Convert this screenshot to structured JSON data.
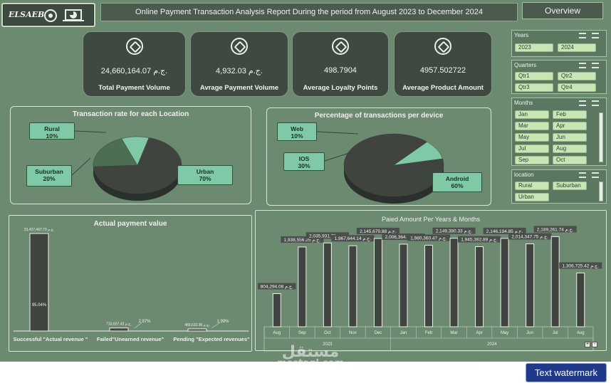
{
  "header": {
    "logo_text": "ELSAEB",
    "report_title": "Online Payment Transaction Analysis Report  During the period from August 2023 to December 2024",
    "overview_label": "Overview"
  },
  "kpis": [
    {
      "value": "24,660,164.07 ج.م.",
      "label": "Total Payment Volume"
    },
    {
      "value": "4,932.03 ج.م.",
      "label": "Avrage Payment Volume"
    },
    {
      "value": "498.7904",
      "label": "Average Loyalty Points"
    },
    {
      "value": "4957.502722",
      "label": "Average Product Amount"
    }
  ],
  "slicers": {
    "years": {
      "title": "Years",
      "items": [
        "2023",
        "2024"
      ]
    },
    "quarters": {
      "title": "Quarters",
      "items": [
        "Qtr1",
        "Qtr2",
        "Qtr3",
        "Qtr4"
      ]
    },
    "months": {
      "title": "Months",
      "items": [
        "Jan",
        "Feb",
        "Mar",
        "Apr",
        "May",
        "Jun",
        "Jul",
        "Aug",
        "Sep",
        "Oct"
      ]
    },
    "location": {
      "title": "location",
      "items": [
        "Rural",
        "Suburban",
        "Urban"
      ]
    }
  },
  "chart_data": [
    {
      "type": "pie",
      "title": "Transaction rate for each Location",
      "slices": [
        {
          "label": "Urban",
          "value": 70,
          "text": "70%"
        },
        {
          "label": "Suburban",
          "value": 20,
          "text": "20%"
        },
        {
          "label": "Rural",
          "value": 10,
          "text": "10%"
        }
      ]
    },
    {
      "type": "pie",
      "title": "Percentage of transactions per device",
      "slices": [
        {
          "label": "Android",
          "value": 60,
          "text": "60%"
        },
        {
          "label": "IOS",
          "value": 30,
          "text": "30%"
        },
        {
          "label": "Web",
          "value": 10,
          "text": "10%"
        }
      ]
    },
    {
      "type": "bar",
      "title": "Actual payment value",
      "categories": [
        "Successful \"Actual revenue \"",
        "Failed\"Unearned revenue\"",
        "Pending \"Expected revenues\""
      ],
      "values": [
        23437467.79,
        733657.43,
        489610.06
      ],
      "value_labels": [
        "23,437,467.79 ج.م.",
        "733,657.43 ج.م.",
        "489,610.06 ج.م."
      ],
      "percent_labels": [
        "95.04%",
        "2.97%",
        "1.99%"
      ]
    },
    {
      "type": "bar",
      "title": "Paied Amount Per Years & Months",
      "categories": [
        "Aug",
        "Sep",
        "Oct",
        "Nov",
        "Dec",
        "Jan",
        "Feb",
        "Mar",
        "Apr",
        "May",
        "Jun",
        "Jul",
        "Aug"
      ],
      "groups": [
        {
          "label": "2023",
          "span": 5
        },
        {
          "label": "2024",
          "span": 8
        }
      ],
      "values": [
        804294.08,
        1938556.25,
        2035931.71,
        1967644.14,
        2145679.88,
        2006364.76,
        1980360.47,
        2149380.33,
        1945392.89,
        2146194.85,
        2014347.75,
        2189261.74,
        1306725.42
      ],
      "value_labels": [
        "804,294.08 ج.م.",
        "1,938,556.25 ج.م.",
        "2,035,931.71 ج.م.",
        "1,967,644.14 ج.م.",
        "2,145,679.88 ج.م.",
        "2,006,364.76 ج.م.",
        "1,980,360.47 ج.م.",
        "2,149,380.33 ج.م.",
        "1,945,392.89 ج.م.",
        "2,146,194.85 ج.م.",
        "2,014,347.75 ج.م.",
        "2,189,261.74 ج.م.",
        "1,306,725.42 ج.م."
      ]
    }
  ],
  "watermark": {
    "arabic": "مستقل",
    "latin": "mostaql.com"
  },
  "text_watermark_label": "Text watermark",
  "colors": {
    "background": "#6b8a6f",
    "card": "#3e4a41",
    "accent": "#7fc9a6",
    "bar": "#3f443f"
  }
}
